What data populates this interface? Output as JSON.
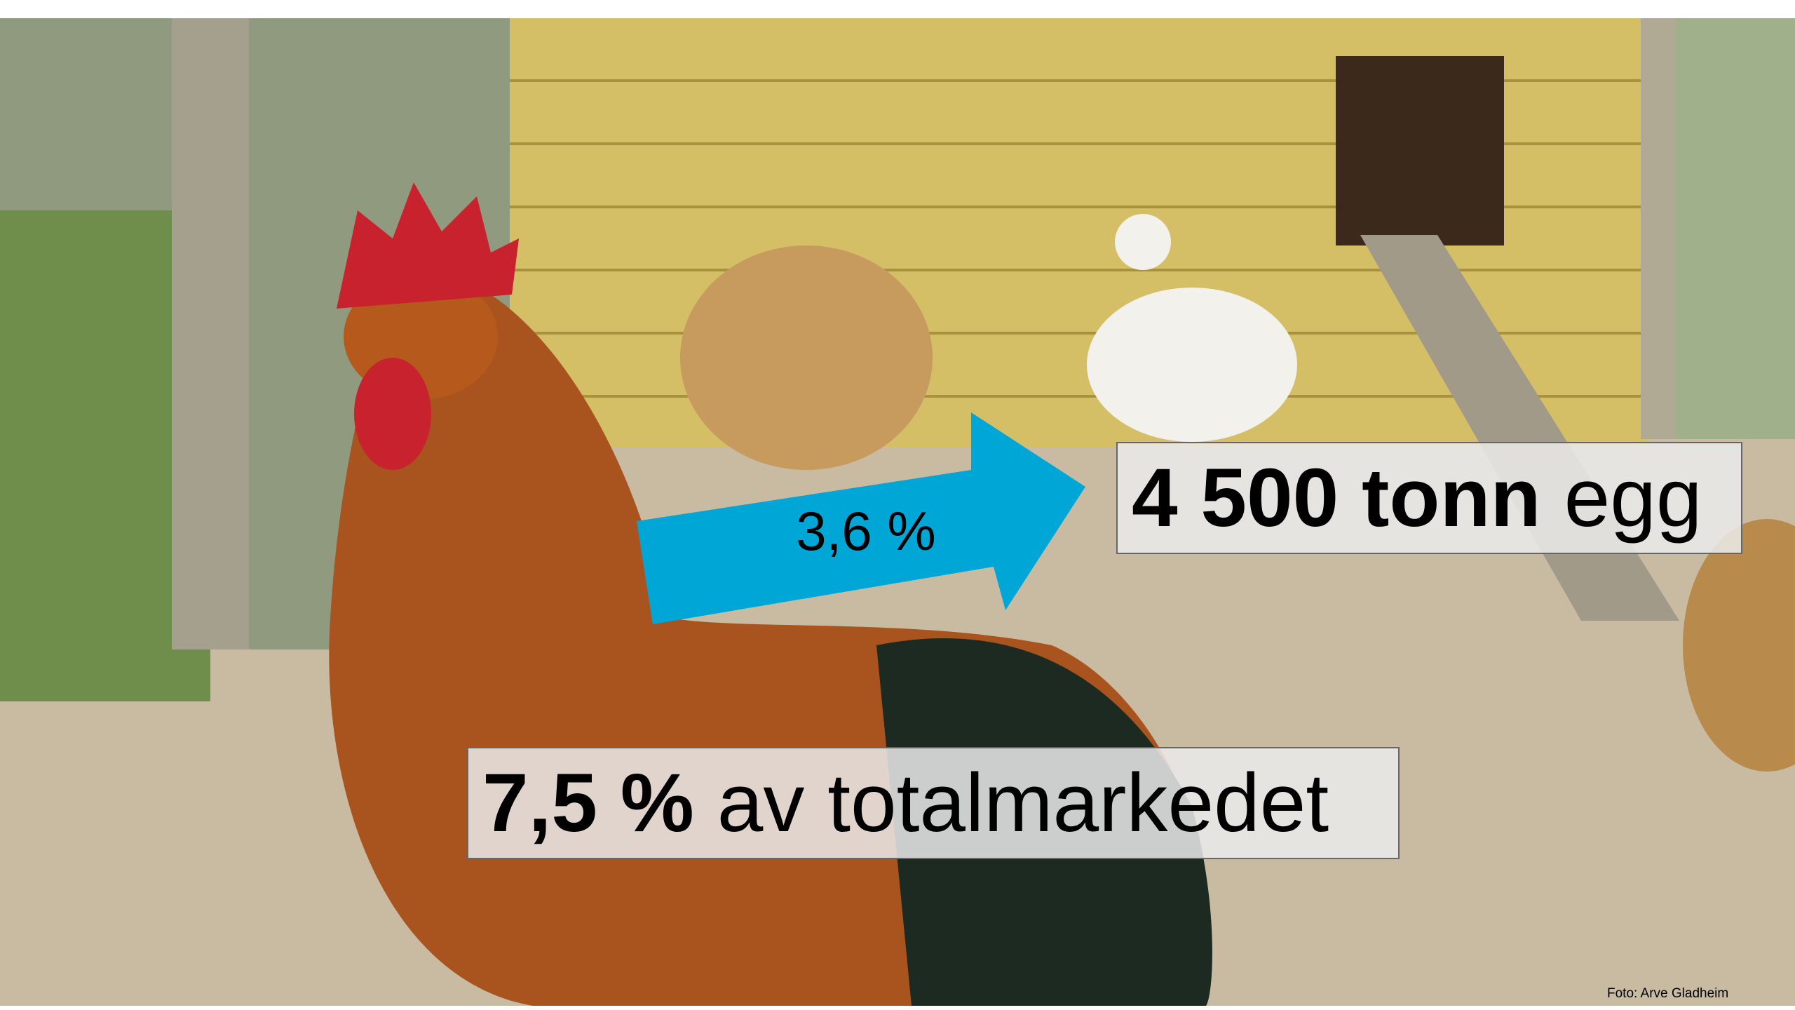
{
  "boxes": [
    {
      "bold": "4 500 tonn",
      "text": "egg"
    },
    {
      "bold": "7,5 %",
      "text": "av totalmarkedet"
    }
  ],
  "arrow_label": "3,6 %",
  "credit": "Foto: Arve Gladheim"
}
